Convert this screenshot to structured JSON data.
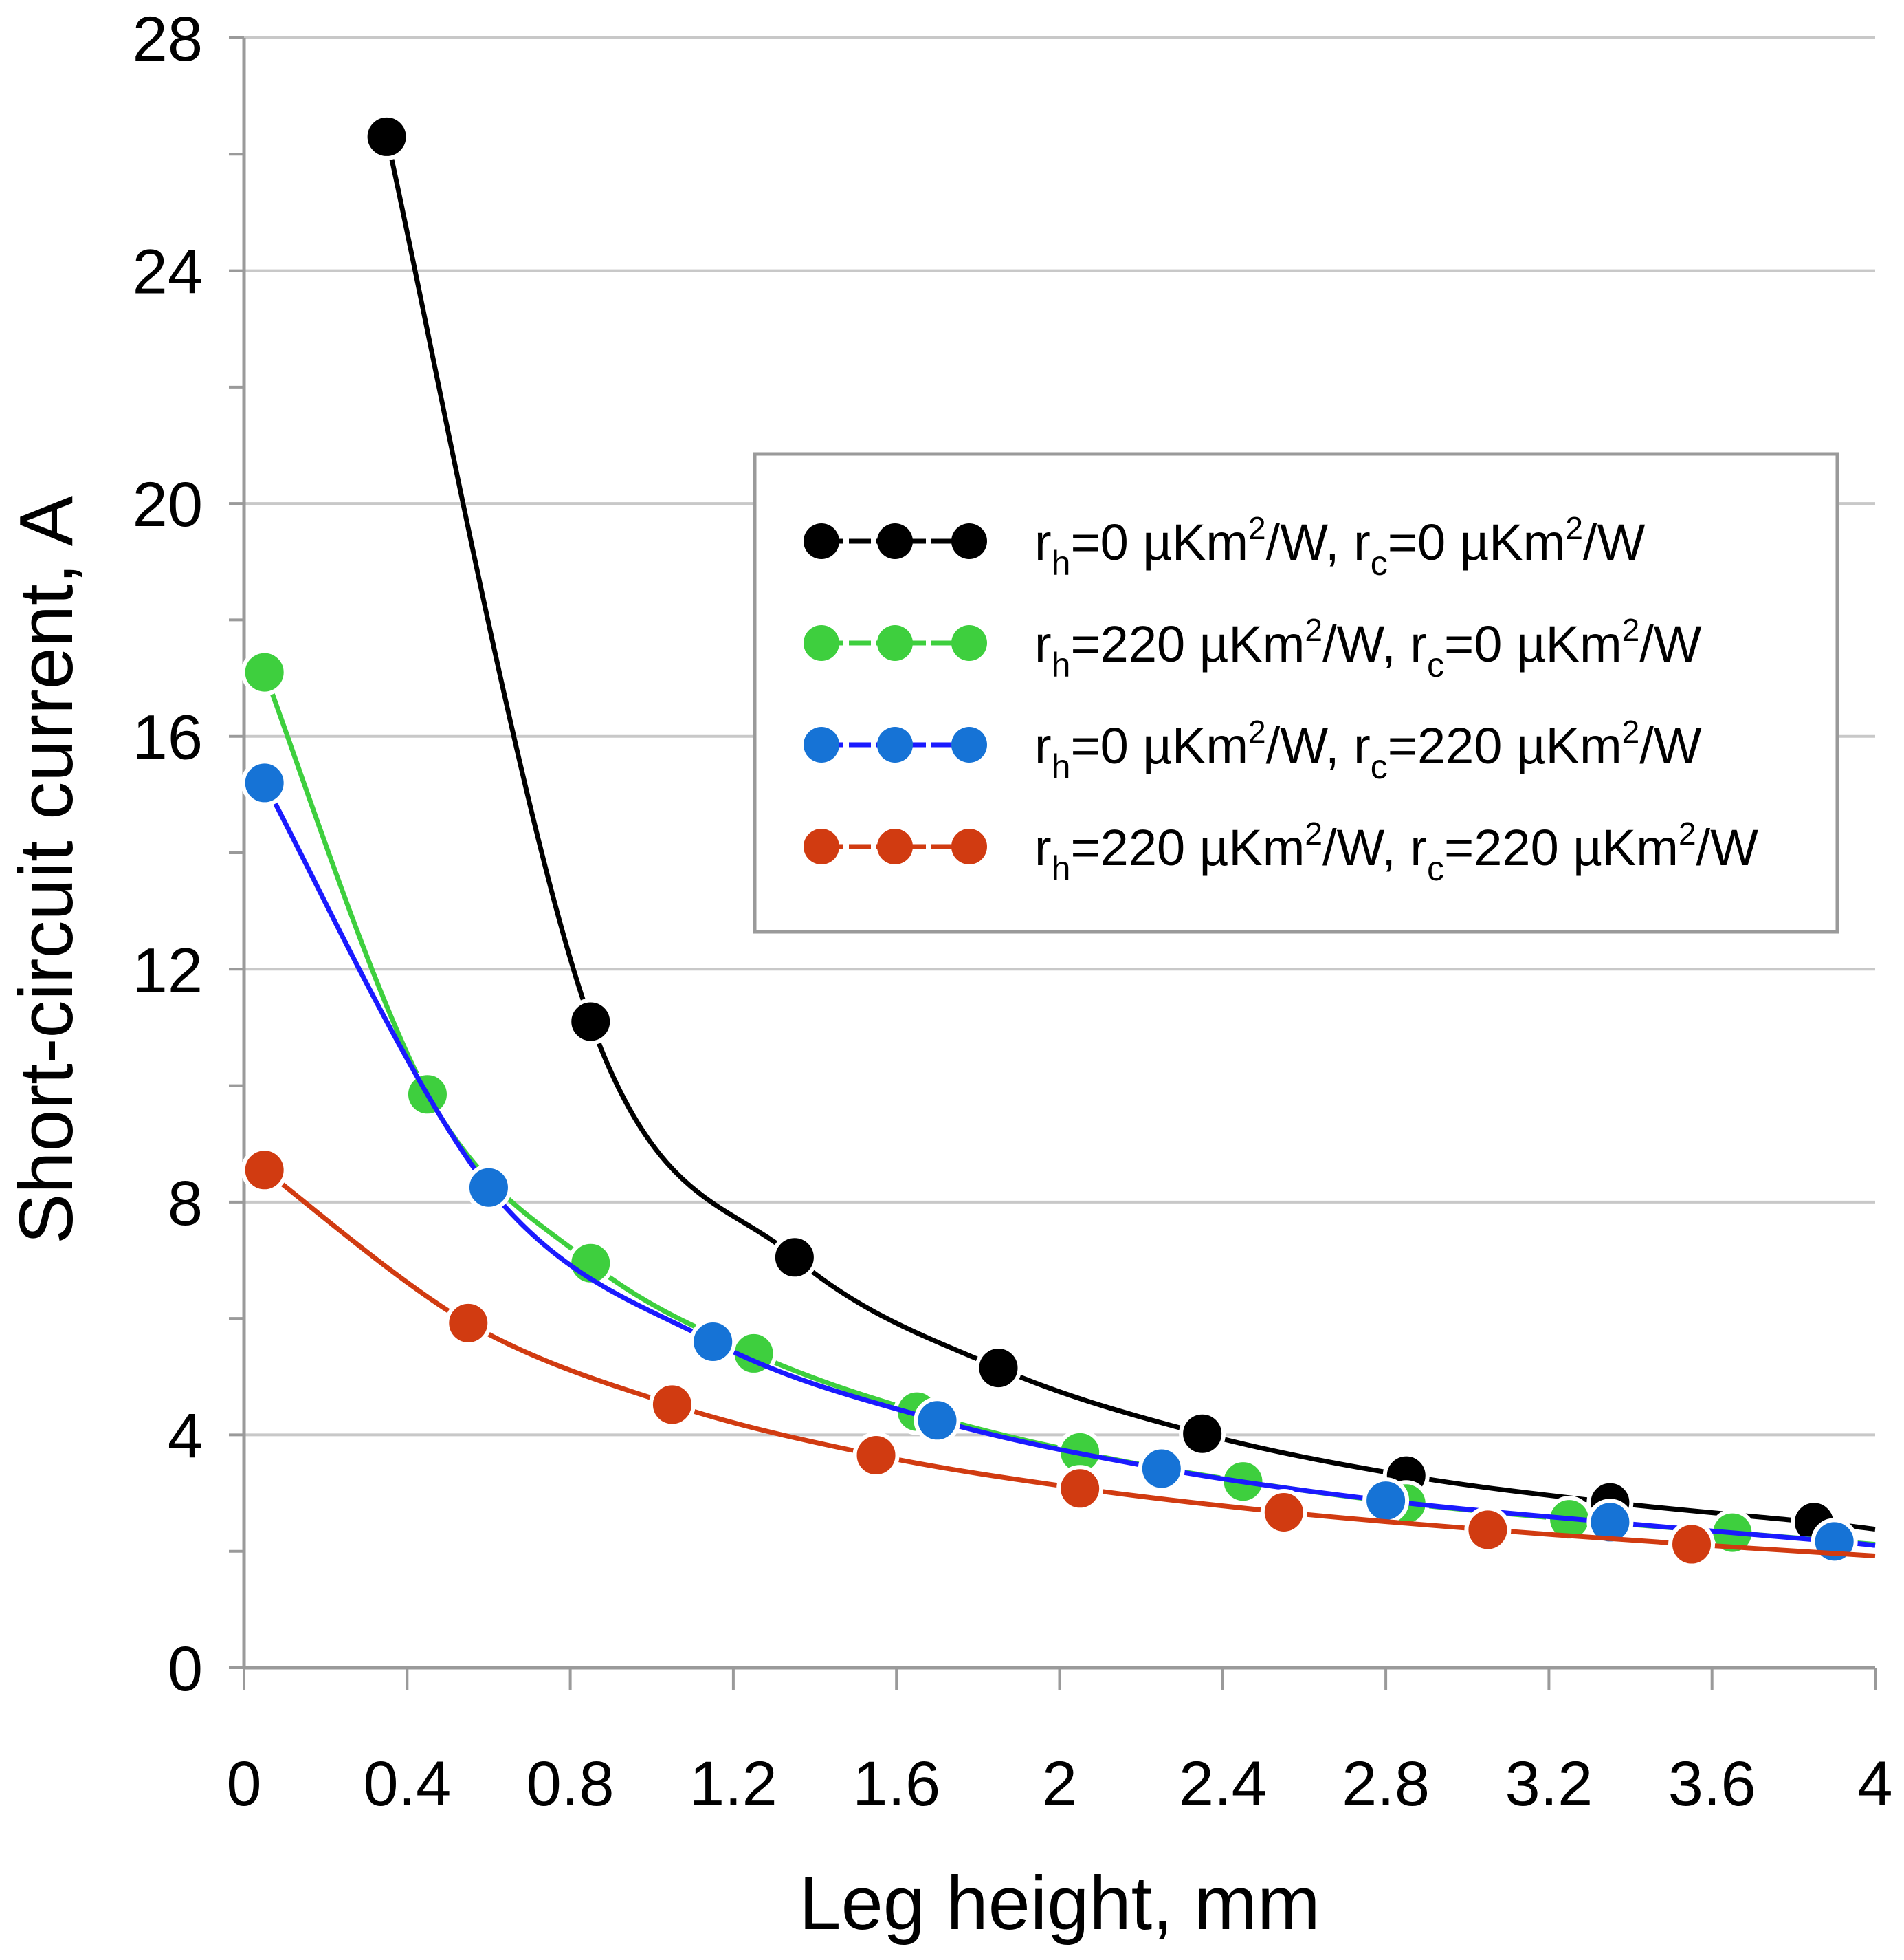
{
  "chart_data": {
    "type": "line",
    "xlabel": "Leg height, mm",
    "ylabel": "Short-circuit current, A",
    "xlim": [
      0,
      4
    ],
    "ylim": [
      0,
      28
    ],
    "x_ticks": [
      "0",
      "0.4",
      "0.8",
      "1.2",
      "1.6",
      "2",
      "2.4",
      "2.8",
      "3.2",
      "3.6",
      "4"
    ],
    "y_ticks": [
      "0",
      "4",
      "8",
      "12",
      "16",
      "20",
      "24",
      "28"
    ],
    "grid": "horizontal",
    "legend_position": "upper-right",
    "series": [
      {
        "name": "rh=0 µKm²/W, rc=0 µKm²/W",
        "legend": {
          "r1": "r",
          "s1": "h",
          "m1": "=0 µKm",
          "p1": "2",
          "m2": "/W, r",
          "s2": "c",
          "m3": "=0 µKm",
          "p2": "2",
          "m4": "/W"
        },
        "color": "#000000",
        "line_color": "#000000",
        "x": [
          0.35,
          0.85,
          1.35,
          1.85,
          2.35,
          2.85,
          3.35,
          3.85,
          4.0
        ],
        "y": [
          26.3,
          11.1,
          7.05,
          5.15,
          4.02,
          3.3,
          2.84,
          2.5,
          2.38
        ],
        "markers": [
          true,
          true,
          true,
          true,
          true,
          true,
          true,
          true,
          false
        ]
      },
      {
        "name": "rh=220 µKm²/W, rc=0 µKm²/W",
        "legend": {
          "r1": "r",
          "s1": "h",
          "m1": "=220 µKm",
          "p1": "2",
          "m2": "/W, r",
          "s2": "c",
          "m3": "=0 µKm",
          "p2": "2",
          "m4": "/W"
        },
        "color": "#3ecf3e",
        "line_color": "#3ecf3e",
        "x": [
          0.05,
          0.45,
          0.85,
          1.25,
          1.65,
          2.05,
          2.45,
          2.85,
          3.25,
          3.65,
          4.0
        ],
        "y": [
          17.1,
          9.85,
          6.95,
          5.4,
          4.4,
          3.7,
          3.2,
          2.82,
          2.55,
          2.32,
          2.12
        ],
        "markers": [
          true,
          true,
          true,
          true,
          true,
          true,
          true,
          true,
          true,
          true,
          false
        ]
      },
      {
        "name": "rh=0 µKm²/W, rc=220 µKm²/W",
        "legend": {
          "r1": "r",
          "s1": "h",
          "m1": "=0 µKm",
          "p1": "2",
          "m2": "/W, r",
          "s2": "c",
          "m3": "=220 µKm",
          "p2": "2",
          "m4": "/W"
        },
        "color": "#1673d6",
        "line_color": "#1a1aff",
        "x": [
          0.05,
          0.6,
          1.15,
          1.7,
          2.25,
          2.8,
          3.35,
          3.9,
          4.0
        ],
        "y": [
          15.2,
          8.25,
          5.6,
          4.25,
          3.42,
          2.87,
          2.5,
          2.17,
          2.1
        ],
        "markers": [
          true,
          true,
          true,
          true,
          true,
          true,
          true,
          true,
          false
        ]
      },
      {
        "name": "rh=220 µKm²/W, rc=220 µKm²/W",
        "legend": {
          "r1": "r",
          "s1": "h",
          "m1": "=220 µKm",
          "p1": "2",
          "m2": "/W, r",
          "s2": "c",
          "m3": "=220 µKm",
          "p2": "2",
          "m4": "/W"
        },
        "color": "#d13b11",
        "line_color": "#d13b11",
        "x": [
          0.05,
          0.55,
          1.05,
          1.55,
          2.05,
          2.55,
          3.05,
          3.55,
          4.0
        ],
        "y": [
          8.55,
          5.92,
          4.52,
          3.65,
          3.08,
          2.67,
          2.37,
          2.12,
          1.92
        ],
        "markers": [
          true,
          true,
          true,
          true,
          true,
          true,
          true,
          true,
          false
        ]
      }
    ]
  }
}
